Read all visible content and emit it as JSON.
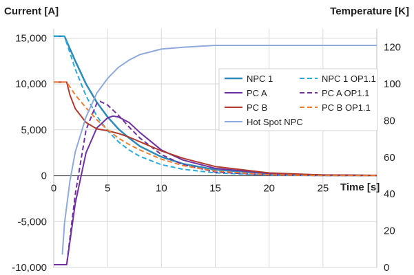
{
  "chart_data": {
    "type": "line",
    "ylabel": "Current [A]",
    "ylabel_right": "Temperature [K]",
    "xlabel": "Time [s]",
    "x_ticks": [
      "0",
      "5",
      "10",
      "15",
      "20",
      "25"
    ],
    "y_ticks": [
      "15,000",
      "10,000",
      "5,000",
      "0",
      "-5,000",
      "-10,000"
    ],
    "y2_ticks": [
      "120",
      "100",
      "80",
      "60",
      "40",
      "20",
      "0"
    ],
    "xlim": [
      0,
      30
    ],
    "ylim": [
      -10000,
      16000
    ],
    "y2lim": [
      0,
      130
    ],
    "grid": true,
    "legend_position": "middle-right",
    "series": [
      {
        "name": "NPC 1",
        "axis": "left",
        "color": "#2E8AB8",
        "dash": "solid",
        "width": 2.5,
        "points": [
          [
            0,
            15200
          ],
          [
            1,
            15200
          ],
          [
            2,
            12500
          ],
          [
            3,
            10000
          ],
          [
            4,
            8000
          ],
          [
            5,
            6400
          ],
          [
            6,
            5100
          ],
          [
            7,
            4100
          ],
          [
            8,
            3200
          ],
          [
            10,
            2050
          ],
          [
            12,
            1300
          ],
          [
            15,
            650
          ],
          [
            20,
            210
          ],
          [
            25,
            70
          ],
          [
            30,
            25
          ]
        ]
      },
      {
        "name": "NPC 1 OP1.1",
        "axis": "left",
        "color": "#29ABE2",
        "dash": "dashed",
        "width": 2,
        "points": [
          [
            0,
            15200
          ],
          [
            1,
            15200
          ],
          [
            2,
            11600
          ],
          [
            3,
            8700
          ],
          [
            4,
            6500
          ],
          [
            5,
            4900
          ],
          [
            6,
            3700
          ],
          [
            7,
            2800
          ],
          [
            8,
            2100
          ],
          [
            10,
            1200
          ],
          [
            12,
            700
          ],
          [
            15,
            300
          ],
          [
            20,
            60
          ],
          [
            25,
            15
          ],
          [
            30,
            0
          ]
        ]
      },
      {
        "name": "PC A",
        "axis": "left",
        "color": "#7030A0",
        "dash": "solid",
        "width": 2,
        "points": [
          [
            0,
            -9700
          ],
          [
            1.2,
            -9700
          ],
          [
            2,
            -3000
          ],
          [
            3,
            2500
          ],
          [
            4,
            5200
          ],
          [
            5,
            6300
          ],
          [
            5.5,
            6500
          ],
          [
            6,
            6400
          ],
          [
            7,
            5800
          ],
          [
            8,
            4700
          ],
          [
            10,
            2800
          ],
          [
            12,
            1700
          ],
          [
            15,
            800
          ],
          [
            20,
            250
          ],
          [
            25,
            80
          ],
          [
            30,
            30
          ]
        ]
      },
      {
        "name": "PC A OP1.1",
        "axis": "left",
        "color": "#7030A0",
        "dash": "dashed",
        "width": 2,
        "points": [
          [
            0,
            -9700
          ],
          [
            1.2,
            -9700
          ],
          [
            2,
            -2000
          ],
          [
            3,
            5000
          ],
          [
            4,
            7900
          ],
          [
            4.3,
            8100
          ],
          [
            5,
            7700
          ],
          [
            6,
            6600
          ],
          [
            7,
            5300
          ],
          [
            8,
            4100
          ],
          [
            10,
            2300
          ],
          [
            12,
            1200
          ],
          [
            15,
            400
          ],
          [
            20,
            80
          ],
          [
            25,
            20
          ],
          [
            30,
            0
          ]
        ]
      },
      {
        "name": "PC B",
        "axis": "left",
        "color": "#B03A2E",
        "dash": "solid",
        "width": 2,
        "points": [
          [
            0,
            10200
          ],
          [
            1.2,
            10200
          ],
          [
            1.5,
            8800
          ],
          [
            2,
            7300
          ],
          [
            3,
            5800
          ],
          [
            4,
            5100
          ],
          [
            5,
            4900
          ],
          [
            6,
            4600
          ],
          [
            7,
            4200
          ],
          [
            8,
            3700
          ],
          [
            10,
            2700
          ],
          [
            12,
            1900
          ],
          [
            15,
            1000
          ],
          [
            20,
            300
          ],
          [
            25,
            80
          ],
          [
            30,
            30
          ]
        ]
      },
      {
        "name": "PC B OP1.1",
        "axis": "left",
        "color": "#ED7D31",
        "dash": "dashed",
        "width": 2,
        "points": [
          [
            0,
            10200
          ],
          [
            1.2,
            10200
          ],
          [
            2,
            8800
          ],
          [
            3,
            7400
          ],
          [
            4,
            6100
          ],
          [
            5,
            5000
          ],
          [
            6,
            4100
          ],
          [
            7,
            3400
          ],
          [
            8,
            2800
          ],
          [
            10,
            1800
          ],
          [
            12,
            1100
          ],
          [
            15,
            500
          ],
          [
            20,
            100
          ],
          [
            25,
            20
          ],
          [
            30,
            0
          ]
        ]
      },
      {
        "name": "Hot Spot NPC",
        "axis": "right",
        "color": "#8EA9DB",
        "dash": "solid",
        "width": 2,
        "points": [
          [
            0.8,
            7
          ],
          [
            1,
            24
          ],
          [
            1.5,
            47
          ],
          [
            2,
            63
          ],
          [
            3,
            82
          ],
          [
            4,
            95
          ],
          [
            5,
            103
          ],
          [
            6,
            109
          ],
          [
            7,
            113
          ],
          [
            8,
            116
          ],
          [
            10,
            119
          ],
          [
            12,
            120
          ],
          [
            15,
            121
          ],
          [
            20,
            121
          ],
          [
            25,
            121
          ],
          [
            30,
            121
          ]
        ]
      }
    ],
    "legend_order": [
      "NPC 1",
      "NPC 1 OP1.1",
      "PC A",
      "PC A OP1.1",
      "PC B",
      "PC B OP1.1",
      "Hot Spot NPC"
    ]
  }
}
